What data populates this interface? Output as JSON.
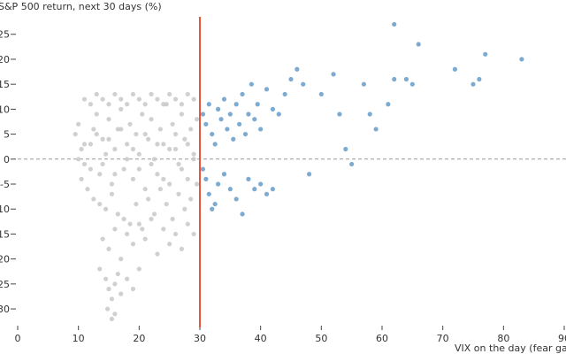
{
  "chart_data": {
    "type": "scatter",
    "title": "",
    "xlabel": "VIX on the day (fear gauge)",
    "ylabel": "S&P 500 return, next 30 days (%)",
    "xlim": [
      0,
      90
    ],
    "ylim": [
      -33,
      28.5
    ],
    "x_ticks": [
      0,
      10,
      20,
      30,
      40,
      50,
      60,
      70,
      80,
      90
    ],
    "y_ticks": [
      -30,
      -25,
      -20,
      -15,
      -10,
      -5,
      0,
      5,
      10,
      15,
      20,
      25
    ],
    "grid": false,
    "threshold_line": {
      "x": 30,
      "color": "#e8553a"
    },
    "zero_line": {
      "y": 0,
      "style": "dashed",
      "color": "#999999"
    },
    "colors": {
      "calm": "#c8c8c8",
      "fear": "#5b95c4"
    },
    "series": [
      {
        "group": "below-30",
        "color": "#c8c8c8",
        "points": [
          [
            9.5,
            5
          ],
          [
            10,
            7
          ],
          [
            10.5,
            2
          ],
          [
            11,
            -1
          ],
          [
            12,
            3
          ],
          [
            12.5,
            6
          ],
          [
            13,
            9
          ],
          [
            13.5,
            -3
          ],
          [
            14,
            4
          ],
          [
            14.5,
            1
          ],
          [
            15,
            8
          ],
          [
            15.5,
            -5
          ],
          [
            16,
            2
          ],
          [
            16.5,
            6
          ],
          [
            17,
            10
          ],
          [
            17.5,
            -2
          ],
          [
            18,
            3
          ],
          [
            18.5,
            7
          ],
          [
            19,
            -4
          ],
          [
            19.5,
            5
          ],
          [
            20,
            1
          ],
          [
            20.5,
            9
          ],
          [
            21,
            -6
          ],
          [
            21.5,
            4
          ],
          [
            22,
            8
          ],
          [
            22.5,
            0
          ],
          [
            23,
            -3
          ],
          [
            23.5,
            6
          ],
          [
            24,
            3
          ],
          [
            24.5,
            11
          ],
          [
            25,
            -5
          ],
          [
            25.5,
            7
          ],
          [
            26,
            2
          ],
          [
            26.5,
            -1
          ],
          [
            27,
            9
          ],
          [
            27.5,
            4
          ],
          [
            28,
            -4
          ],
          [
            28.5,
            6
          ],
          [
            29,
            1
          ],
          [
            29.5,
            8
          ],
          [
            10.5,
            -4
          ],
          [
            11.5,
            -6
          ],
          [
            12.5,
            -8
          ],
          [
            13.5,
            -9
          ],
          [
            14.5,
            -10
          ],
          [
            15.5,
            -7
          ],
          [
            16.5,
            -11
          ],
          [
            17.5,
            -12
          ],
          [
            18.5,
            -13
          ],
          [
            19.5,
            -9
          ],
          [
            20.5,
            -14
          ],
          [
            21.5,
            -8
          ],
          [
            22.5,
            -11
          ],
          [
            23.5,
            -6
          ],
          [
            24.5,
            -9
          ],
          [
            25.5,
            -12
          ],
          [
            26.5,
            -7
          ],
          [
            27.5,
            -10
          ],
          [
            28.5,
            -8
          ],
          [
            29.5,
            -5
          ],
          [
            14,
            -16
          ],
          [
            15,
            -18
          ],
          [
            16,
            -14
          ],
          [
            17,
            -20
          ],
          [
            18,
            -15
          ],
          [
            19,
            -17
          ],
          [
            20,
            -13
          ],
          [
            21,
            -16
          ],
          [
            22,
            -12
          ],
          [
            23,
            -19
          ],
          [
            24,
            -14
          ],
          [
            25,
            -17
          ],
          [
            26,
            -15
          ],
          [
            27,
            -18
          ],
          [
            28,
            -13
          ],
          [
            29,
            -15
          ],
          [
            13.5,
            -22
          ],
          [
            14.5,
            -24
          ],
          [
            15,
            -26
          ],
          [
            15.5,
            -28
          ],
          [
            16,
            -25
          ],
          [
            16.5,
            -23
          ],
          [
            17,
            -27
          ],
          [
            18,
            -24
          ],
          [
            19,
            -26
          ],
          [
            20,
            -22
          ],
          [
            16,
            -31
          ],
          [
            15.5,
            -32
          ],
          [
            14.8,
            -30
          ],
          [
            11,
            12
          ],
          [
            12,
            11
          ],
          [
            13,
            13
          ],
          [
            14,
            12
          ],
          [
            15,
            11
          ],
          [
            16,
            13
          ],
          [
            17,
            12
          ],
          [
            18,
            11
          ],
          [
            19,
            13
          ],
          [
            20,
            12
          ],
          [
            21,
            11
          ],
          [
            22,
            13
          ],
          [
            23,
            12
          ],
          [
            24,
            11
          ],
          [
            25,
            13
          ],
          [
            26,
            12
          ],
          [
            27,
            11
          ],
          [
            28,
            13
          ],
          [
            29,
            12
          ],
          [
            10,
            0
          ],
          [
            11,
            3
          ],
          [
            12,
            -2
          ],
          [
            13,
            5
          ],
          [
            14,
            -1
          ],
          [
            15,
            4
          ],
          [
            16,
            -3
          ],
          [
            17,
            6
          ],
          [
            18,
            0
          ],
          [
            19,
            2
          ],
          [
            20,
            -2
          ],
          [
            21,
            5
          ],
          [
            22,
            -1
          ],
          [
            23,
            3
          ],
          [
            24,
            -4
          ],
          [
            25,
            2
          ],
          [
            26,
            5
          ],
          [
            27,
            -2
          ],
          [
            28,
            3
          ],
          [
            29,
            0
          ]
        ]
      },
      {
        "group": "30-and-above",
        "color": "#5b95c4",
        "points": [
          [
            30.5,
            9
          ],
          [
            31,
            7
          ],
          [
            31.5,
            11
          ],
          [
            32,
            5
          ],
          [
            32.5,
            3
          ],
          [
            33,
            10
          ],
          [
            33.5,
            8
          ],
          [
            34,
            12
          ],
          [
            34.5,
            6
          ],
          [
            35,
            9
          ],
          [
            35.5,
            4
          ],
          [
            36,
            11
          ],
          [
            36.5,
            7
          ],
          [
            37,
            13
          ],
          [
            37.5,
            5
          ],
          [
            38,
            9
          ],
          [
            38.5,
            15
          ],
          [
            39,
            8
          ],
          [
            39.5,
            11
          ],
          [
            40,
            6
          ],
          [
            30.5,
            -2
          ],
          [
            31,
            -4
          ],
          [
            31.5,
            -7
          ],
          [
            32,
            -10
          ],
          [
            32.5,
            -9
          ],
          [
            33,
            -5
          ],
          [
            34,
            -3
          ],
          [
            35,
            -6
          ],
          [
            36,
            -8
          ],
          [
            37,
            -11
          ],
          [
            38,
            -4
          ],
          [
            39,
            -6
          ],
          [
            40,
            -5
          ],
          [
            41,
            -7
          ],
          [
            42,
            -6
          ],
          [
            41,
            14
          ],
          [
            42,
            10
          ],
          [
            43,
            9
          ],
          [
            44,
            13
          ],
          [
            45,
            16
          ],
          [
            46,
            18
          ],
          [
            47,
            15
          ],
          [
            48,
            -3
          ],
          [
            50,
            13
          ],
          [
            52,
            17
          ],
          [
            53,
            9
          ],
          [
            54,
            2
          ],
          [
            55,
            -1
          ],
          [
            57,
            15
          ],
          [
            58,
            9
          ],
          [
            59,
            6
          ],
          [
            61,
            11
          ],
          [
            62,
            16
          ],
          [
            64,
            16
          ],
          [
            65,
            15
          ],
          [
            66,
            23
          ],
          [
            62,
            27
          ],
          [
            72,
            18
          ],
          [
            75,
            15
          ],
          [
            76,
            16
          ],
          [
            77,
            21
          ],
          [
            83,
            20
          ]
        ]
      }
    ]
  }
}
